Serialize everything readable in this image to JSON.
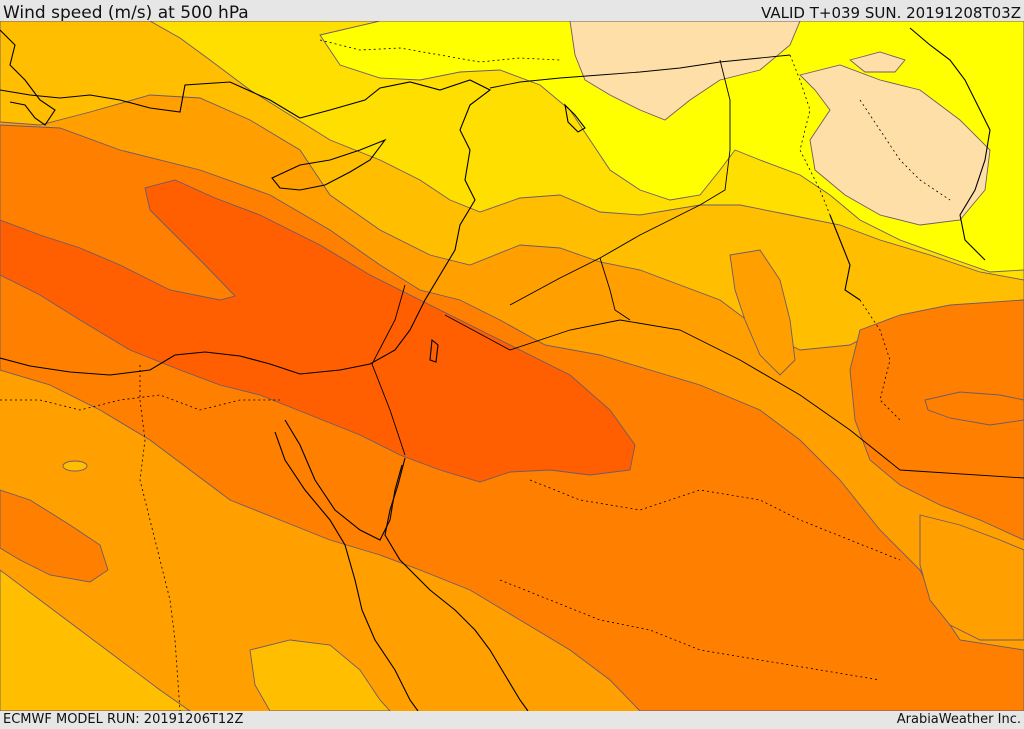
{
  "header": {
    "title": "Wind speed (m/s) at 500 hPa",
    "valid": "VALID T+039 SUN. 20191208T03Z"
  },
  "footer": {
    "model_run": "ECMWF MODEL RUN: 20191206T12Z",
    "credit": "ArabiaWeather Inc."
  },
  "colors": {
    "band_bisque": "#ffdfa8",
    "band_yellow": "#ffff00",
    "band_gold": "#ffdf00",
    "band_amber": "#ffbf00",
    "band_orange_light": "#ff9f00",
    "band_orange": "#ff7f00",
    "band_orange_dark": "#ff5f00",
    "contour_line": "#6d5a6d",
    "border_line": "#000000"
  },
  "layers": [
    "wind-speed-bands",
    "contour-lines",
    "coastlines",
    "country-borders"
  ]
}
